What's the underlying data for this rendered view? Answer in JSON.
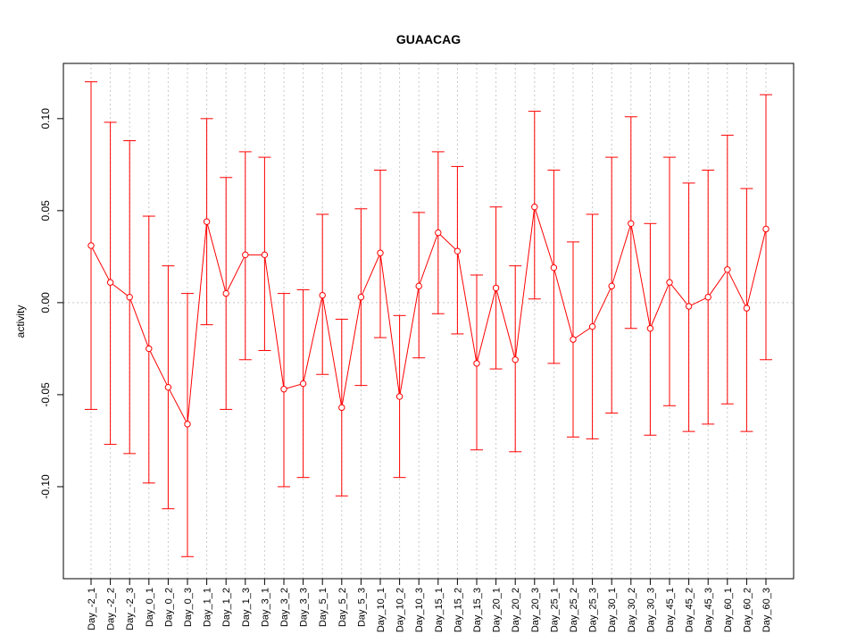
{
  "chart_data": {
    "type": "line",
    "title": "GUAACAG",
    "xlabel": "",
    "ylabel": "activity",
    "ylim": [
      -0.15,
      0.13
    ],
    "yticks": [
      -0.1,
      -0.05,
      0.0,
      0.05,
      0.1
    ],
    "ytick_labels": [
      "-0.10",
      "-0.05",
      "0.00",
      "0.05",
      "0.10"
    ],
    "grid": true,
    "series_color": "#ff0000",
    "grid_color": "#c8c8c8",
    "categories": [
      "Day_-2_1",
      "Day_-2_2",
      "Day_-2_3",
      "Day_0_1",
      "Day_0_2",
      "Day_0_3",
      "Day_1_1",
      "Day_1_2",
      "Day_1_3",
      "Day_3_1",
      "Day_3_2",
      "Day_3_3",
      "Day_5_1",
      "Day_5_2",
      "Day_5_3",
      "Day_10_1",
      "Day_10_2",
      "Day_10_3",
      "Day_15_1",
      "Day_15_2",
      "Day_15_3",
      "Day_20_1",
      "Day_20_2",
      "Day_20_3",
      "Day_25_1",
      "Day_25_2",
      "Day_25_3",
      "Day_30_1",
      "Day_30_2",
      "Day_30_3",
      "Day_45_1",
      "Day_45_2",
      "Day_45_3",
      "Day_60_1",
      "Day_60_2",
      "Day_60_3"
    ],
    "values": [
      0.031,
      0.011,
      0.003,
      -0.025,
      -0.046,
      -0.066,
      0.044,
      0.005,
      0.026,
      0.026,
      -0.047,
      -0.044,
      0.004,
      -0.057,
      0.003,
      0.027,
      -0.051,
      0.009,
      0.038,
      0.028,
      -0.033,
      0.008,
      -0.031,
      0.052,
      0.019,
      -0.02,
      -0.013,
      0.009,
      0.043,
      -0.014,
      0.011,
      -0.002,
      0.003,
      0.018,
      -0.003,
      0.04
    ],
    "upper": [
      0.12,
      0.098,
      0.088,
      0.047,
      0.02,
      0.005,
      0.1,
      0.068,
      0.082,
      0.079,
      0.005,
      0.007,
      0.048,
      -0.009,
      0.051,
      0.072,
      -0.007,
      0.049,
      0.082,
      0.074,
      0.015,
      0.052,
      0.02,
      0.104,
      0.072,
      0.033,
      0.048,
      0.079,
      0.101,
      0.043,
      0.079,
      0.065,
      0.072,
      0.091,
      0.062,
      0.113
    ],
    "lower": [
      -0.058,
      -0.077,
      -0.082,
      -0.098,
      -0.112,
      -0.138,
      -0.012,
      -0.058,
      -0.031,
      -0.026,
      -0.1,
      -0.095,
      -0.039,
      -0.105,
      -0.045,
      -0.019,
      -0.095,
      -0.03,
      -0.006,
      -0.017,
      -0.08,
      -0.036,
      -0.081,
      0.002,
      -0.033,
      -0.073,
      -0.074,
      -0.06,
      -0.014,
      -0.072,
      -0.056,
      -0.07,
      -0.066,
      -0.055,
      -0.07,
      -0.031
    ]
  }
}
